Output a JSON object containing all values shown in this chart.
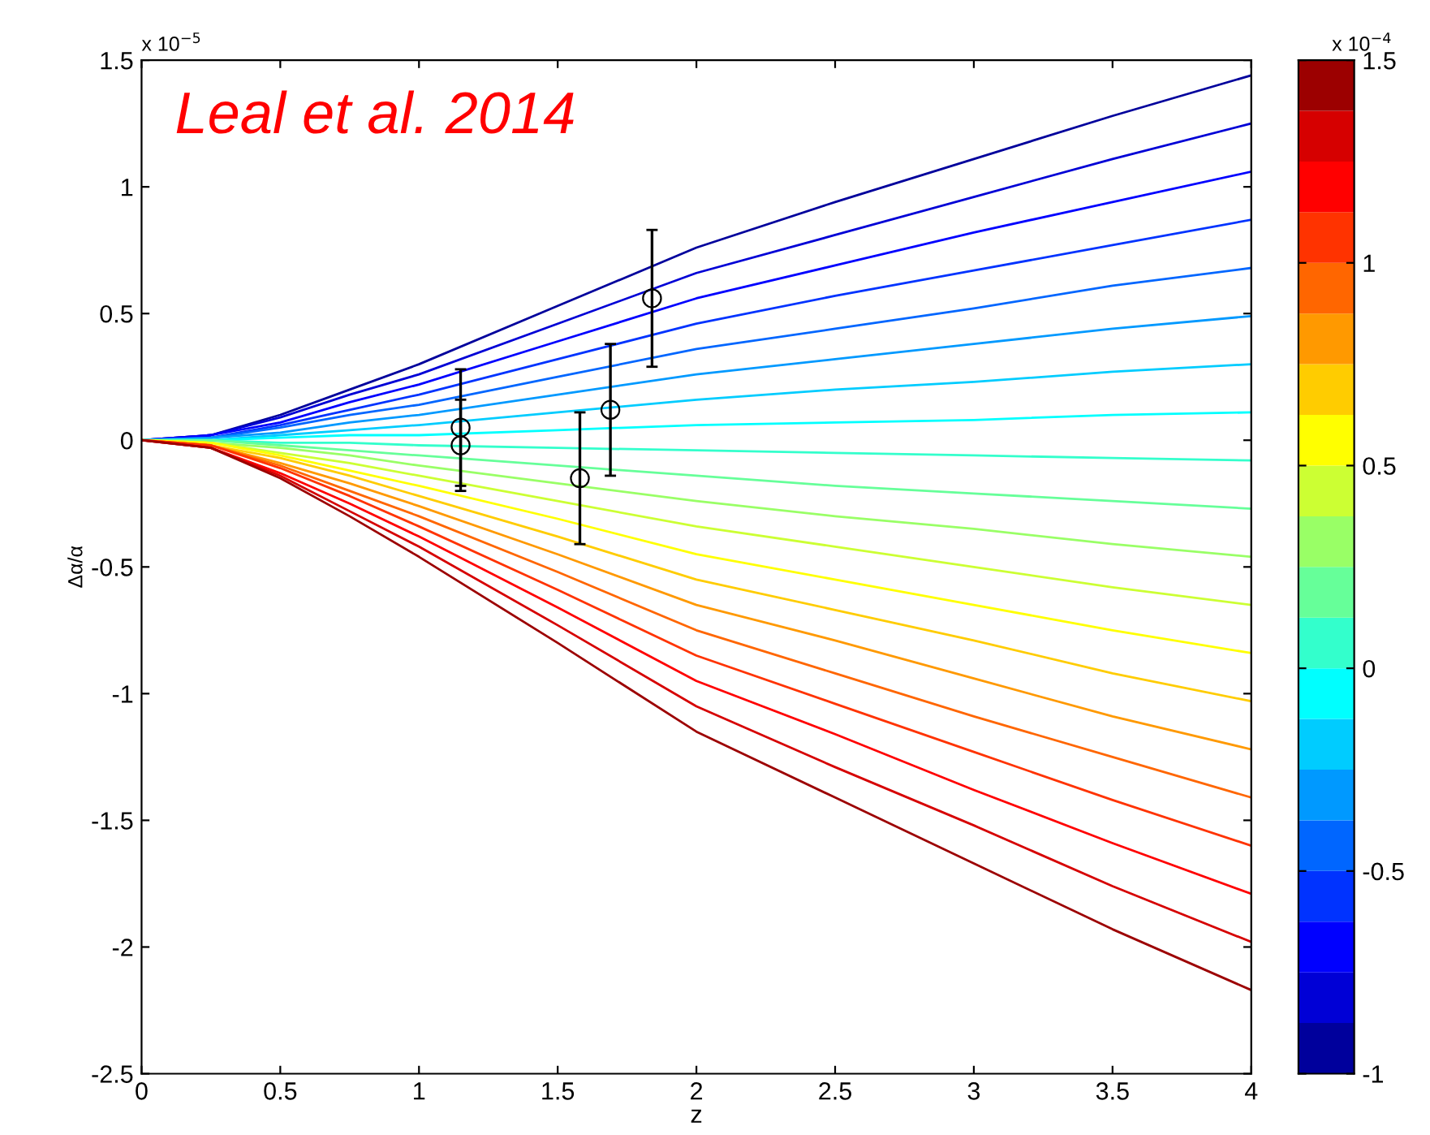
{
  "chart_data": {
    "type": "line",
    "title": "Leal et al. 2014",
    "xlabel": "z",
    "ylabel": "Δα/α",
    "annotations": [
      "x 10$^{−5}$",
      "x 10$^{−4}$"
    ],
    "x": [
      0,
      0.25,
      0.5,
      0.75,
      1,
      1.5,
      2,
      2.5,
      3,
      3.5,
      4
    ],
    "xlim": [
      0,
      4
    ],
    "xticks": [
      0,
      0.5,
      1,
      1.5,
      2,
      2.5,
      3,
      3.5,
      4
    ],
    "ylim": [
      -2.5,
      1.5
    ],
    "yticks": [
      -2.5,
      -2,
      -1.5,
      -1,
      -0.5,
      0,
      0.5,
      1,
      1.5
    ],
    "clim": [
      -1,
      1.5
    ],
    "cticks": [
      -1,
      -0.5,
      0,
      0.5,
      1,
      1.5
    ],
    "grid": false,
    "legend": false,
    "series": [
      {
        "color": "#00009c",
        "values": [
          0,
          0.02,
          0.1,
          0.2,
          0.3,
          0.53,
          0.76,
          0.94,
          1.11,
          1.28,
          1.44
        ]
      },
      {
        "color": "#0000d6",
        "values": [
          0,
          0.02,
          0.09,
          0.18,
          0.26,
          0.46,
          0.66,
          0.81,
          0.96,
          1.11,
          1.25
        ]
      },
      {
        "color": "#0000ff",
        "values": [
          0,
          0.02,
          0.07,
          0.15,
          0.22,
          0.39,
          0.56,
          0.69,
          0.82,
          0.94,
          1.06
        ]
      },
      {
        "color": "#0033ff",
        "values": [
          0,
          0.01,
          0.06,
          0.12,
          0.18,
          0.32,
          0.46,
          0.57,
          0.67,
          0.77,
          0.87
        ]
      },
      {
        "color": "#0066ff",
        "values": [
          0,
          0.01,
          0.05,
          0.1,
          0.14,
          0.25,
          0.36,
          0.44,
          0.52,
          0.61,
          0.68
        ]
      },
      {
        "color": "#0099ff",
        "values": [
          0,
          0.01,
          0.03,
          0.07,
          0.1,
          0.18,
          0.26,
          0.32,
          0.38,
          0.44,
          0.49
        ]
      },
      {
        "color": "#00ccff",
        "values": [
          0,
          0.0,
          0.02,
          0.04,
          0.06,
          0.11,
          0.16,
          0.2,
          0.23,
          0.27,
          0.3
        ]
      },
      {
        "color": "#00ffff",
        "values": [
          0,
          0.0,
          0.01,
          0.02,
          0.02,
          0.04,
          0.06,
          0.07,
          0.08,
          0.1,
          0.11
        ]
      },
      {
        "color": "#33ffcc",
        "values": [
          0,
          0.0,
          -0.01,
          -0.01,
          -0.02,
          -0.03,
          -0.04,
          -0.05,
          -0.06,
          -0.07,
          -0.08
        ]
      },
      {
        "color": "#66ff99",
        "values": [
          0,
          0.0,
          -0.02,
          -0.04,
          -0.06,
          -0.1,
          -0.14,
          -0.18,
          -0.21,
          -0.24,
          -0.27
        ]
      },
      {
        "color": "#99ff66",
        "values": [
          0,
          -0.01,
          -0.03,
          -0.06,
          -0.1,
          -0.17,
          -0.24,
          -0.3,
          -0.35,
          -0.41,
          -0.46
        ]
      },
      {
        "color": "#ccff33",
        "values": [
          0,
          -0.01,
          -0.05,
          -0.09,
          -0.14,
          -0.24,
          -0.34,
          -0.42,
          -0.5,
          -0.58,
          -0.65
        ]
      },
      {
        "color": "#ffff00",
        "values": [
          0,
          -0.01,
          -0.06,
          -0.12,
          -0.18,
          -0.31,
          -0.45,
          -0.55,
          -0.65,
          -0.75,
          -0.84
        ]
      },
      {
        "color": "#ffcc00",
        "values": [
          0,
          -0.02,
          -0.07,
          -0.14,
          -0.22,
          -0.38,
          -0.55,
          -0.67,
          -0.79,
          -0.92,
          -1.03
        ]
      },
      {
        "color": "#ff9900",
        "values": [
          0,
          -0.02,
          -0.09,
          -0.17,
          -0.26,
          -0.45,
          -0.65,
          -0.79,
          -0.94,
          -1.09,
          -1.22
        ]
      },
      {
        "color": "#ff6600",
        "values": [
          0,
          -0.02,
          -0.1,
          -0.2,
          -0.3,
          -0.52,
          -0.75,
          -0.92,
          -1.09,
          -1.25,
          -1.41
        ]
      },
      {
        "color": "#ff3300",
        "values": [
          0,
          -0.02,
          -0.11,
          -0.22,
          -0.34,
          -0.59,
          -0.85,
          -1.04,
          -1.23,
          -1.42,
          -1.6
        ]
      },
      {
        "color": "#ff0000",
        "values": [
          0,
          -0.03,
          -0.13,
          -0.25,
          -0.38,
          -0.66,
          -0.95,
          -1.16,
          -1.38,
          -1.59,
          -1.79
        ]
      },
      {
        "color": "#d60000",
        "values": [
          0,
          -0.03,
          -0.14,
          -0.28,
          -0.42,
          -0.73,
          -1.05,
          -1.29,
          -1.52,
          -1.76,
          -1.98
        ]
      },
      {
        "color": "#9c0000",
        "values": [
          0,
          -0.03,
          -0.15,
          -0.3,
          -0.46,
          -0.8,
          -1.15,
          -1.41,
          -1.67,
          -1.93,
          -2.17
        ]
      },
      {
        "type": "scatter",
        "marker": "circle",
        "color": "#000000",
        "x": [
          1.15,
          1.15,
          1.58,
          1.69,
          1.84
        ],
        "values": [
          0.05,
          -0.02,
          -0.15,
          0.12,
          0.56
        ],
        "errors": [
          0.23,
          0.18,
          0.26,
          0.26,
          0.27
        ]
      }
    ]
  }
}
